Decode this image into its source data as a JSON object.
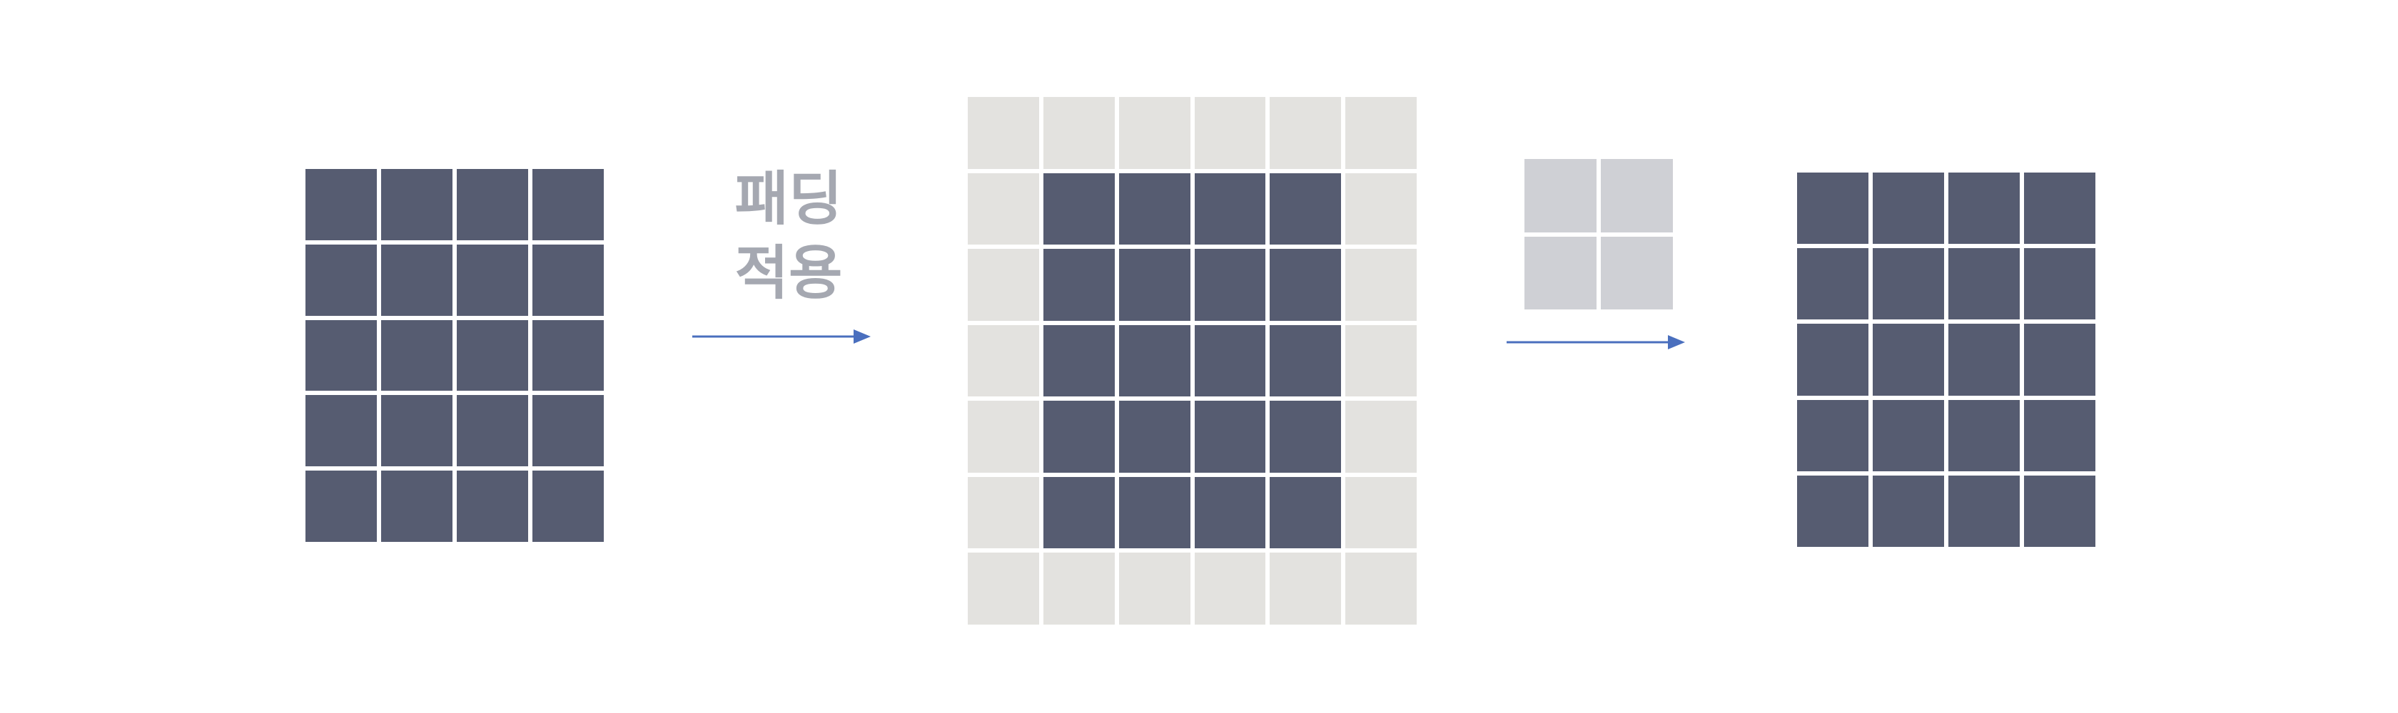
{
  "diagram": {
    "padding_label": [
      "패딩",
      "적용"
    ],
    "colors": {
      "data_cell": "#565c71",
      "padding_cell": "#e3e2df",
      "kernel_cell": "#cfd0d5",
      "arrow": "#4a6fbe",
      "label": "#a5a8b1",
      "divider": "#ffffff"
    },
    "input_grid": {
      "rows": 5,
      "cols": 4
    },
    "padded_grid": {
      "rows": 7,
      "cols": 6,
      "padding": 1
    },
    "kernel": {
      "rows": 2,
      "cols": 2
    },
    "output_grid": {
      "rows": 5,
      "cols": 4
    }
  }
}
